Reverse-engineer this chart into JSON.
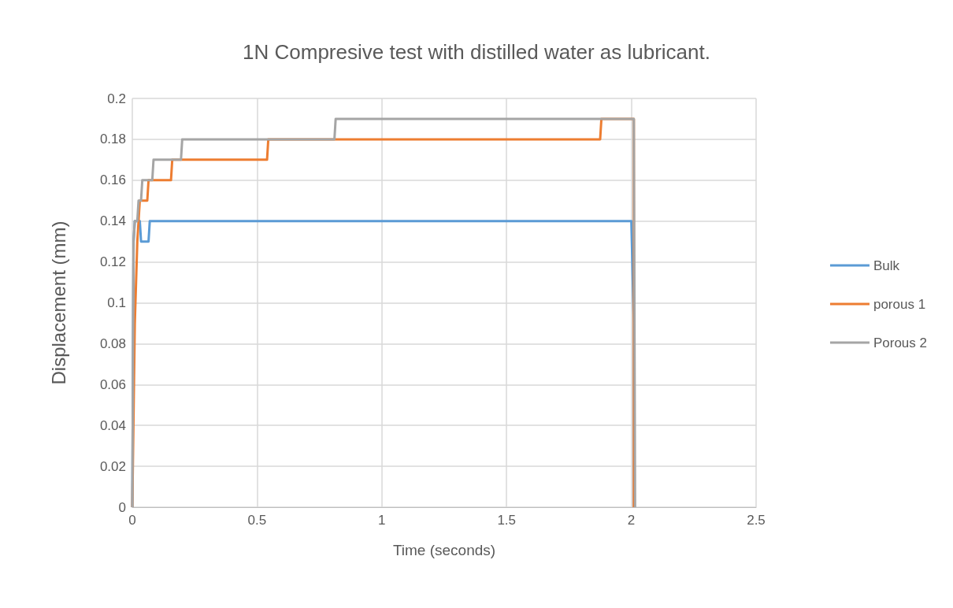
{
  "chart_data": {
    "type": "line",
    "title": "1N Compresive test with distilled water as lubricant.",
    "xlabel": "Time (seconds)",
    "ylabel": "Displacement (mm)",
    "xlim": [
      0,
      2.5
    ],
    "xticks": [
      0,
      0.5,
      1,
      1.5,
      2,
      2.5
    ],
    "ylim": [
      0,
      0.2
    ],
    "yticks": [
      0,
      0.02,
      0.04,
      0.06,
      0.08,
      0.1,
      0.12,
      0.14,
      0.16,
      0.18,
      0.2
    ],
    "grid": true,
    "legend": "right",
    "marker": "none",
    "line_style": "solid",
    "series": [
      {
        "name": "Bulk",
        "color": "#5b9bd5",
        "x": [
          0,
          0.005,
          0.01,
          0.03,
          0.035,
          0.065,
          0.07,
          2.0,
          2.01,
          2.01
        ],
        "values": [
          0,
          0.13,
          0.14,
          0.14,
          0.13,
          0.13,
          0.14,
          0.14,
          0.09,
          0
        ]
      },
      {
        "name": "porous 1",
        "color": "#ed7d31",
        "x": [
          0,
          0.01,
          0.02,
          0.025,
          0.03,
          0.06,
          0.065,
          0.155,
          0.16,
          0.54,
          0.545,
          1.875,
          1.88,
          2.01,
          2.01
        ],
        "values": [
          0,
          0.09,
          0.13,
          0.14,
          0.15,
          0.15,
          0.16,
          0.16,
          0.17,
          0.17,
          0.18,
          0.18,
          0.19,
          0.19,
          0
        ]
      },
      {
        "name": "Porous 2",
        "color": "#a5a5a5",
        "x": [
          0,
          0.005,
          0.01,
          0.02,
          0.025,
          0.035,
          0.04,
          0.08,
          0.085,
          0.195,
          0.2,
          0.81,
          0.815,
          2.01,
          2.015
        ],
        "values": [
          0,
          0.13,
          0.14,
          0.14,
          0.15,
          0.15,
          0.16,
          0.16,
          0.17,
          0.17,
          0.18,
          0.18,
          0.19,
          0.19,
          0
        ]
      }
    ]
  }
}
